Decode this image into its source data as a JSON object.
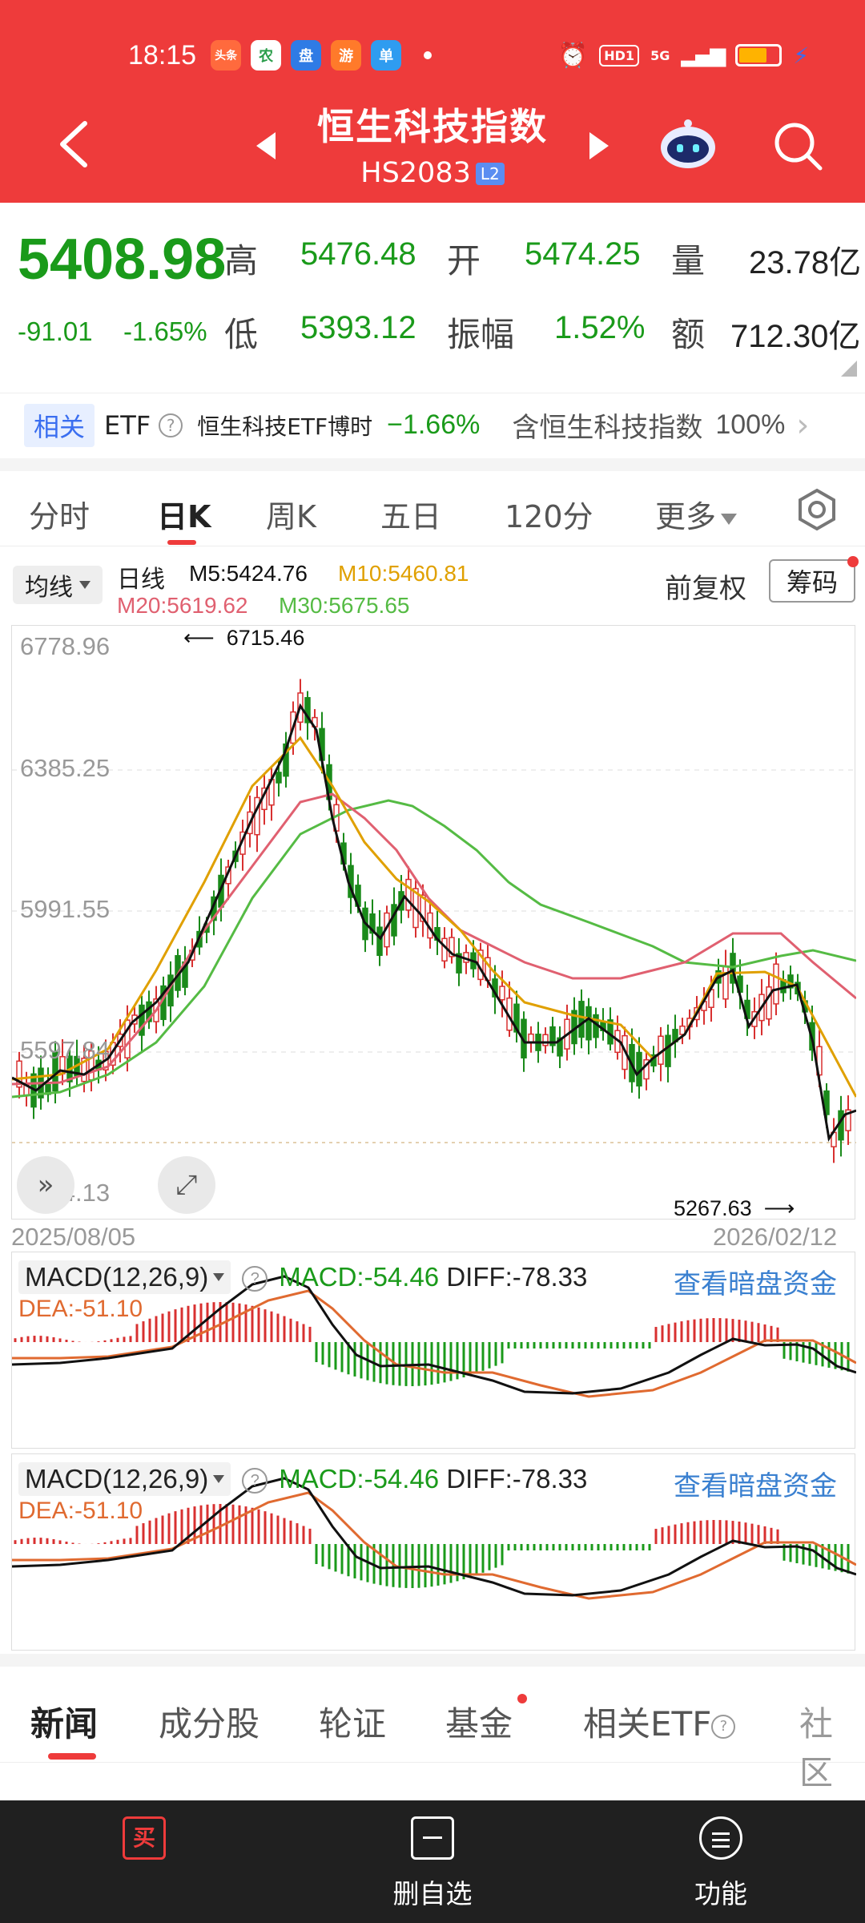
{
  "status_bar": {
    "time": "18:15",
    "app_icons": [
      "头条",
      "农",
      "盘",
      "游",
      "单"
    ],
    "hd": "HD1",
    "network": "5G"
  },
  "nav": {
    "title": "恒生科技指数",
    "code": "HS2083",
    "badge": "L2"
  },
  "quote": {
    "price": "5408.98",
    "change": "-91.01",
    "change_pct": "-1.65%",
    "high_label": "高",
    "high": "5476.48",
    "open_label": "开",
    "open": "5474.25",
    "volume_label": "量",
    "volume": "23.78亿",
    "low_label": "低",
    "low": "5393.12",
    "amplitude_label": "振幅",
    "amplitude": "1.52%",
    "amount_label": "额",
    "amount": "712.30亿"
  },
  "etf_bar": {
    "tag": "相关",
    "etf": "ETF",
    "help": "?",
    "name": "恒生科技ETF博时",
    "pct": "−1.66%",
    "includes": "含恒生科技指数",
    "weight": "100%"
  },
  "chart_tabs": {
    "items": [
      "分时",
      "日K",
      "周K",
      "五日",
      "120分",
      "更多"
    ],
    "active": "日K"
  },
  "ma_legend": {
    "selector": "均线",
    "period": "日线",
    "m5": "M5:5424.76",
    "m10": "M10:5460.81",
    "m20": "M20:5619.62",
    "m30": "M30:5675.65",
    "adjust": "前复权",
    "chips": "筹码"
  },
  "kline": {
    "y_labels": [
      "6778.96",
      "6385.25",
      "5991.55",
      "5597.84",
      "5204.13"
    ],
    "start_date": "2025/08/05",
    "end_date": "2026/02/12",
    "high_annot": "6715.46",
    "low_annot": "5267.63"
  },
  "macd_panels": [
    {
      "selector": "MACD(12,26,9)",
      "help": "?",
      "macd": "MACD:-54.46",
      "diff": "DIFF:-78.33",
      "dea": "DEA:-51.10",
      "link": "查看暗盘资金"
    },
    {
      "selector": "MACD(12,26,9)",
      "help": "?",
      "macd": "MACD:-54.46",
      "diff": "DIFF:-78.33",
      "dea": "DEA:-51.10",
      "link": "查看暗盘资金"
    }
  ],
  "bottom_tabs": {
    "items": [
      "新闻",
      "成分股",
      "轮证",
      "基金",
      "相关ETF",
      "社区"
    ],
    "active": "新闻"
  },
  "bottom_bar": {
    "buy_glyph": "买",
    "delete_label": "删自选",
    "func_label": "功能"
  },
  "colors": {
    "brand_red": "#ee3b3b",
    "down_green": "#1a9a1a",
    "ma5": "#111111",
    "ma10": "#e0a000",
    "ma20": "#e06070",
    "ma30": "#55bb44",
    "link_blue": "#3a80d0"
  }
}
